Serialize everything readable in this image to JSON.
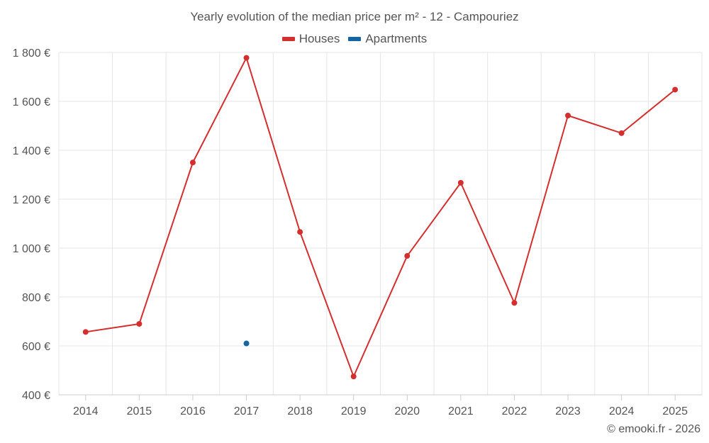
{
  "chart_data": {
    "type": "line",
    "title": "Yearly evolution of the median price per m² - 12 - Campouriez",
    "xlabel": "",
    "ylabel": "",
    "categories": [
      "2014",
      "2015",
      "2016",
      "2017",
      "2018",
      "2019",
      "2020",
      "2021",
      "2022",
      "2023",
      "2024",
      "2025"
    ],
    "y_ticks": [
      400,
      600,
      800,
      1000,
      1200,
      1400,
      1600,
      1800
    ],
    "y_tick_labels": [
      "400 €",
      "600 €",
      "800 €",
      "1 000 €",
      "1 200 €",
      "1 400 €",
      "1 600 €",
      "1 800 €"
    ],
    "ylim": [
      400,
      1800
    ],
    "grid": true,
    "legend_position": "top-center",
    "series": [
      {
        "name": "Houses",
        "color": "#d32f2f",
        "values": [
          657,
          690,
          1350,
          1778,
          1066,
          475,
          968,
          1267,
          776,
          1542,
          1470,
          1648
        ]
      },
      {
        "name": "Apartments",
        "color": "#1565a0",
        "values": [
          null,
          null,
          null,
          610,
          null,
          null,
          null,
          null,
          null,
          null,
          null,
          null
        ]
      }
    ]
  },
  "credit": "© emooki.fr - 2026"
}
